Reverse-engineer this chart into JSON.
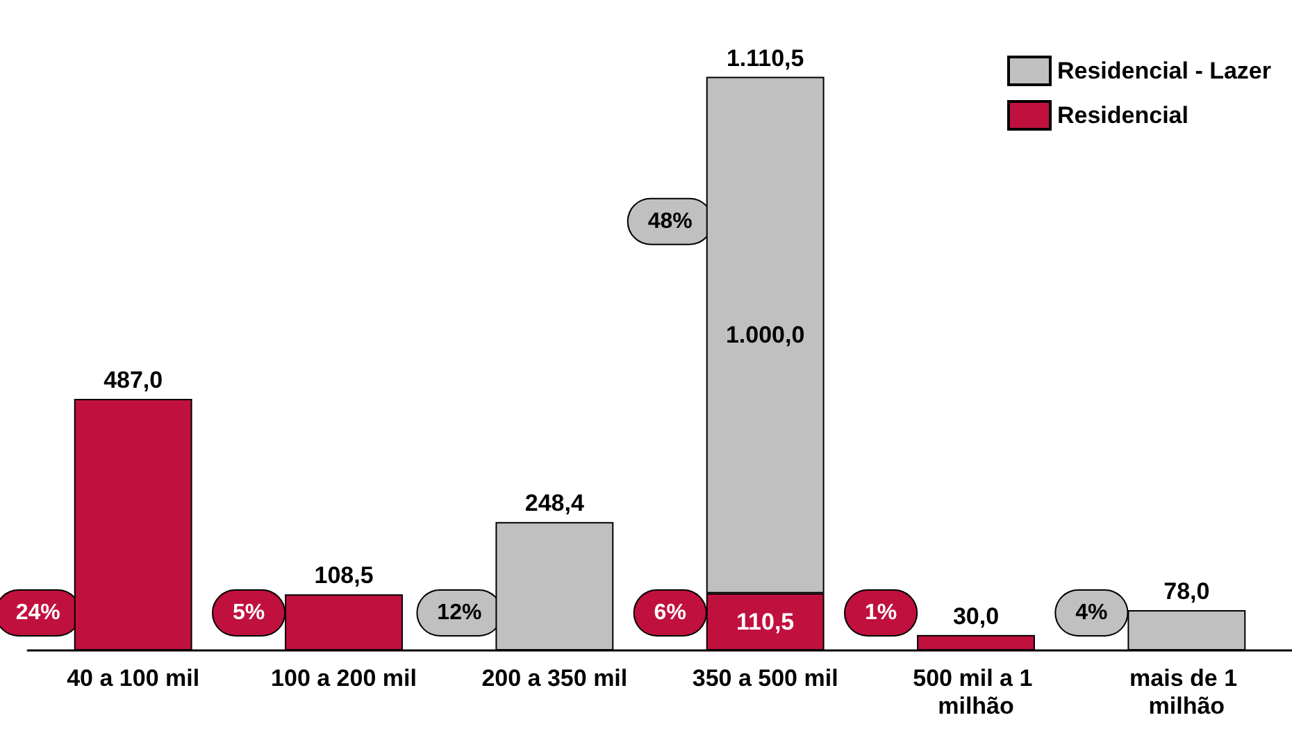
{
  "chart_data": {
    "type": "bar",
    "stacked": true,
    "categories": [
      "40 a 100 mil",
      "100 a 200 mil",
      "200 a 350 mil",
      "350 a 500 mil",
      "500 mil a 1 milhão",
      "mais de 1 milhão"
    ],
    "series": [
      {
        "name": "Residencial",
        "color": "#c0103e",
        "values": [
          487.0,
          108.5,
          null,
          110.5,
          30.0,
          null
        ],
        "value_labels": [
          "487,0",
          "108,5",
          null,
          "110,5",
          "30,0",
          null
        ]
      },
      {
        "name": "Residencial - Lazer",
        "color": "#c0c0c0",
        "values": [
          null,
          null,
          248.4,
          1000.0,
          null,
          78.0
        ],
        "value_labels": [
          null,
          null,
          "248,4",
          "1.000,0",
          null,
          "78,0"
        ]
      }
    ],
    "totals": [
      null,
      null,
      null,
      "1.110,5",
      null,
      null
    ],
    "annotations": [
      "24%",
      "5%",
      "12%",
      "48%",
      "6%",
      "1%",
      "4%"
    ],
    "legend": "top right"
  }
}
